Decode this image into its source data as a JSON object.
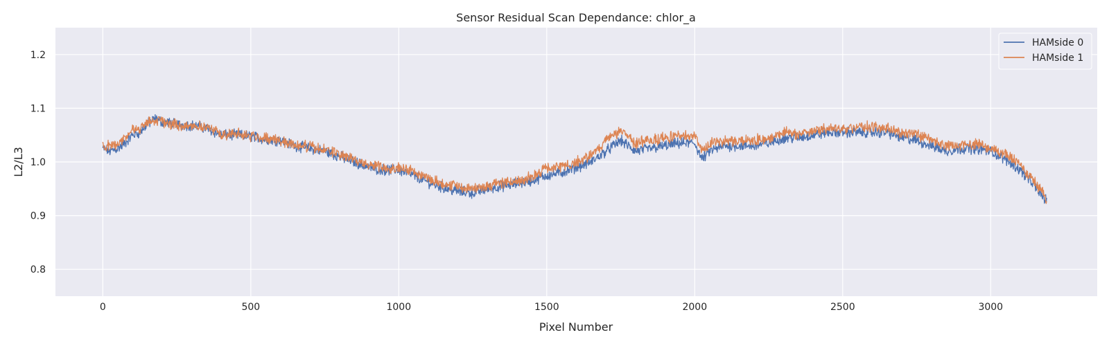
{
  "chart_data": {
    "type": "line",
    "title": "Sensor Residual Scan Dependance: chlor_a",
    "xlabel": "Pixel Number",
    "ylabel": "L2/L3",
    "xlim": [
      -160,
      3360
    ],
    "ylim": [
      0.75,
      1.25
    ],
    "xticks": [
      0,
      500,
      1000,
      1500,
      2000,
      2500,
      3000
    ],
    "yticks": [
      0.8,
      0.9,
      1.0,
      1.1,
      1.2
    ],
    "xtick_labels": [
      "0",
      "500",
      "1000",
      "1500",
      "2000",
      "2500",
      "3000"
    ],
    "ytick_labels": [
      "0.8",
      "0.9",
      "1.0",
      "1.1",
      "1.2"
    ],
    "grid": true,
    "legend": "top-right",
    "series": [
      {
        "name": "HAMside 0",
        "color": "#4c72b0",
        "x": [
          0,
          25,
          50,
          75,
          100,
          125,
          150,
          175,
          200,
          250,
          300,
          350,
          400,
          450,
          500,
          550,
          600,
          650,
          700,
          750,
          800,
          850,
          900,
          950,
          1000,
          1050,
          1100,
          1150,
          1200,
          1250,
          1300,
          1350,
          1400,
          1450,
          1500,
          1550,
          1600,
          1650,
          1700,
          1750,
          1800,
          1850,
          1900,
          1950,
          2000,
          2025,
          2050,
          2100,
          2150,
          2200,
          2250,
          2300,
          2350,
          2400,
          2450,
          2500,
          2550,
          2600,
          2650,
          2700,
          2750,
          2800,
          2850,
          2900,
          2950,
          3000,
          3050,
          3100,
          3150,
          3190
        ],
        "values": [
          1.025,
          1.02,
          1.025,
          1.035,
          1.05,
          1.055,
          1.07,
          1.08,
          1.075,
          1.07,
          1.068,
          1.063,
          1.05,
          1.05,
          1.048,
          1.042,
          1.04,
          1.03,
          1.025,
          1.02,
          1.01,
          1.0,
          0.99,
          0.985,
          0.985,
          0.975,
          0.962,
          0.952,
          0.945,
          0.942,
          0.95,
          0.955,
          0.96,
          0.965,
          0.975,
          0.98,
          0.99,
          1.0,
          1.02,
          1.04,
          1.02,
          1.025,
          1.03,
          1.035,
          1.035,
          1.005,
          1.02,
          1.03,
          1.03,
          1.03,
          1.035,
          1.045,
          1.045,
          1.05,
          1.055,
          1.055,
          1.055,
          1.055,
          1.055,
          1.045,
          1.04,
          1.03,
          1.02,
          1.025,
          1.025,
          1.02,
          1.005,
          0.985,
          0.955,
          0.925
        ]
      },
      {
        "name": "HAMside 1",
        "color": "#dd8452",
        "x": [
          0,
          25,
          50,
          75,
          100,
          125,
          150,
          175,
          200,
          250,
          300,
          350,
          400,
          450,
          500,
          550,
          600,
          650,
          700,
          750,
          800,
          850,
          900,
          950,
          1000,
          1050,
          1100,
          1150,
          1200,
          1250,
          1300,
          1350,
          1400,
          1450,
          1500,
          1550,
          1600,
          1650,
          1700,
          1750,
          1800,
          1850,
          1900,
          1950,
          2000,
          2025,
          2050,
          2100,
          2150,
          2200,
          2250,
          2300,
          2350,
          2400,
          2450,
          2500,
          2550,
          2600,
          2650,
          2700,
          2750,
          2800,
          2850,
          2900,
          2950,
          3000,
          3050,
          3100,
          3150,
          3190
        ],
        "values": [
          1.028,
          1.03,
          1.035,
          1.045,
          1.06,
          1.06,
          1.075,
          1.078,
          1.075,
          1.068,
          1.068,
          1.065,
          1.052,
          1.053,
          1.048,
          1.045,
          1.04,
          1.032,
          1.028,
          1.022,
          1.015,
          1.003,
          0.995,
          0.99,
          0.99,
          0.983,
          0.97,
          0.96,
          0.955,
          0.95,
          0.955,
          0.962,
          0.965,
          0.972,
          0.988,
          0.99,
          1.0,
          1.012,
          1.04,
          1.058,
          1.035,
          1.04,
          1.045,
          1.048,
          1.05,
          1.02,
          1.035,
          1.04,
          1.04,
          1.04,
          1.045,
          1.055,
          1.052,
          1.058,
          1.062,
          1.06,
          1.065,
          1.065,
          1.062,
          1.055,
          1.05,
          1.04,
          1.03,
          1.03,
          1.035,
          1.025,
          1.015,
          0.995,
          0.962,
          0.932
        ]
      }
    ]
  }
}
